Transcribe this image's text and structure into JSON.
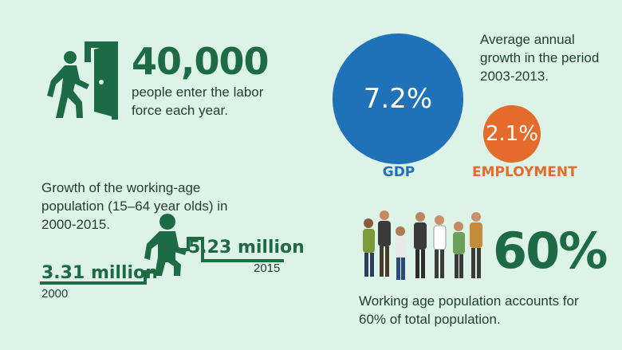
{
  "labor": {
    "count": "40,000",
    "description": "people enter the labor force each year."
  },
  "working_age_growth": {
    "description": "Growth of the working-age population (15–64 year olds) in 2000-2015.",
    "start_value": "3.31 million",
    "start_year": "2000",
    "end_value": "5.23 million",
    "end_year": "2015"
  },
  "annual_growth": {
    "description": "Average annual growth in the period 2003-2013.",
    "gdp_value": "7.2%",
    "gdp_label": "GDP",
    "employment_value": "2.1%",
    "employment_label": "EMPLOYMENT"
  },
  "population_share": {
    "percent": "60%",
    "description": "Working age population accounts for 60% of total population."
  },
  "colors": {
    "background": "#def3e8",
    "primary_green": "#1d6b45",
    "gdp_blue": "#1f72b8",
    "employment_orange": "#e56b2c"
  },
  "icons": [
    "door-exit-icon",
    "stairs-climb-icon",
    "people-group-icon"
  ]
}
